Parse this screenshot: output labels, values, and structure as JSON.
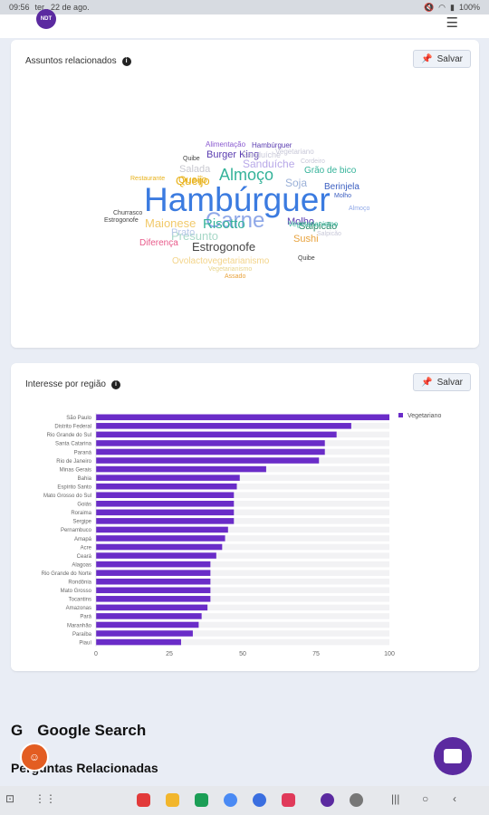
{
  "status_bar": {
    "time": "09:56",
    "date": "ter., 22 de ago.",
    "battery": "100%"
  },
  "app": {
    "logo_text": "NDT"
  },
  "related_topics": {
    "title": "Assuntos relacionados",
    "save_label": "Salvar",
    "words": [
      {
        "text": "Hambúrguer",
        "color": "#3b7be0"
      },
      {
        "text": "Carne",
        "color": "#8fa8e8"
      },
      {
        "text": "Almoço",
        "color": "#35b39a"
      },
      {
        "text": "Estrogonofe",
        "color": "#444444"
      },
      {
        "text": "Queijo",
        "color": "#e8b21c"
      },
      {
        "text": "Burger King",
        "color": "#5a3cb0"
      },
      {
        "text": "Sanduíche",
        "color": "#b8a8e8"
      },
      {
        "text": "Risotto",
        "color": "#35b39a"
      },
      {
        "text": "Molho",
        "color": "#5a3cb0"
      },
      {
        "text": "Soja",
        "color": "#9ab0d8"
      },
      {
        "text": "Salada",
        "color": "#c8c8d0"
      },
      {
        "text": "Maionese",
        "color": "#f1c96a"
      },
      {
        "text": "Presunto",
        "color": "#a8d8c8"
      },
      {
        "text": "Prato",
        "color": "#b8c8e8"
      },
      {
        "text": "Salpicão",
        "color": "#2a8a6a"
      },
      {
        "text": "Sushi",
        "color": "#e8a23c"
      },
      {
        "text": "Berinjela",
        "color": "#3b5ec0"
      },
      {
        "text": "Grão de bico",
        "color": "#35b39a"
      },
      {
        "text": "Diferença",
        "color": "#e85a8a"
      },
      {
        "text": "Ovolactovegetarianismo",
        "color": "#f3d48a"
      },
      {
        "text": "Alimentação",
        "color": "#8a5ad0"
      },
      {
        "text": "Hambúrguer",
        "color": "#5a3cb0"
      },
      {
        "text": "Sanduíche",
        "color": "#c8c8d8"
      },
      {
        "text": "Vegetariano",
        "color": "#c8c8d8"
      },
      {
        "text": "Cordeiro",
        "color": "#c8c8d8"
      },
      {
        "text": "Restaurante",
        "color": "#e8b21c"
      },
      {
        "text": "Quibe",
        "color": "#444444"
      },
      {
        "text": "Churrasco",
        "color": "#444444"
      },
      {
        "text": "Estrogonofe",
        "color": "#444444"
      },
      {
        "text": "Molho",
        "color": "#3b5ec0"
      },
      {
        "text": "Almoço",
        "color": "#8fa8e8"
      },
      {
        "text": "Vegetarianismo",
        "color": "#35b39a"
      },
      {
        "text": "Quibe",
        "color": "#444444"
      },
      {
        "text": "Assado",
        "color": "#e8a23c"
      },
      {
        "text": "Vegetarianismo",
        "color": "#e8d48a"
      },
      {
        "text": "Queijo",
        "color": "#e8b21c"
      },
      {
        "text": "Salpicão",
        "color": "#c8c8d8"
      }
    ]
  },
  "regional_interest": {
    "title": "Interesse por região",
    "save_label": "Salvar"
  },
  "chart_data": {
    "type": "bar",
    "orientation": "horizontal",
    "categories": [
      "São Paulo",
      "Distrito Federal",
      "Rio Grande do Sul",
      "Santa Catarina",
      "Paraná",
      "Rio de Janeiro",
      "Minas Gerais",
      "Bahia",
      "Espírito Santo",
      "Mato Grosso do Sul",
      "Goiás",
      "Roraima",
      "Sergipe",
      "Pernambuco",
      "Amapá",
      "Acre",
      "Ceará",
      "Alagoas",
      "Rio Grande do Norte",
      "Rondônia",
      "Mato Grosso",
      "Tocantins",
      "Amazonas",
      "Pará",
      "Maranhão",
      "Paraíba",
      "Piauí"
    ],
    "series": [
      {
        "name": "Vegetariano",
        "values": [
          100,
          87,
          82,
          78,
          78,
          76,
          58,
          49,
          48,
          47,
          47,
          47,
          47,
          45,
          44,
          43,
          41,
          39,
          39,
          39,
          39,
          39,
          38,
          36,
          35,
          33,
          29
        ]
      }
    ],
    "xlim": [
      0,
      100
    ],
    "xticks": [
      0,
      25,
      50,
      75,
      100
    ],
    "legend": "top-right",
    "color": "#6a2cc8"
  },
  "google_search": {
    "icon_label": "G",
    "label": "Google Search"
  },
  "related_questions": {
    "title": "Perguntas Relacionadas"
  }
}
